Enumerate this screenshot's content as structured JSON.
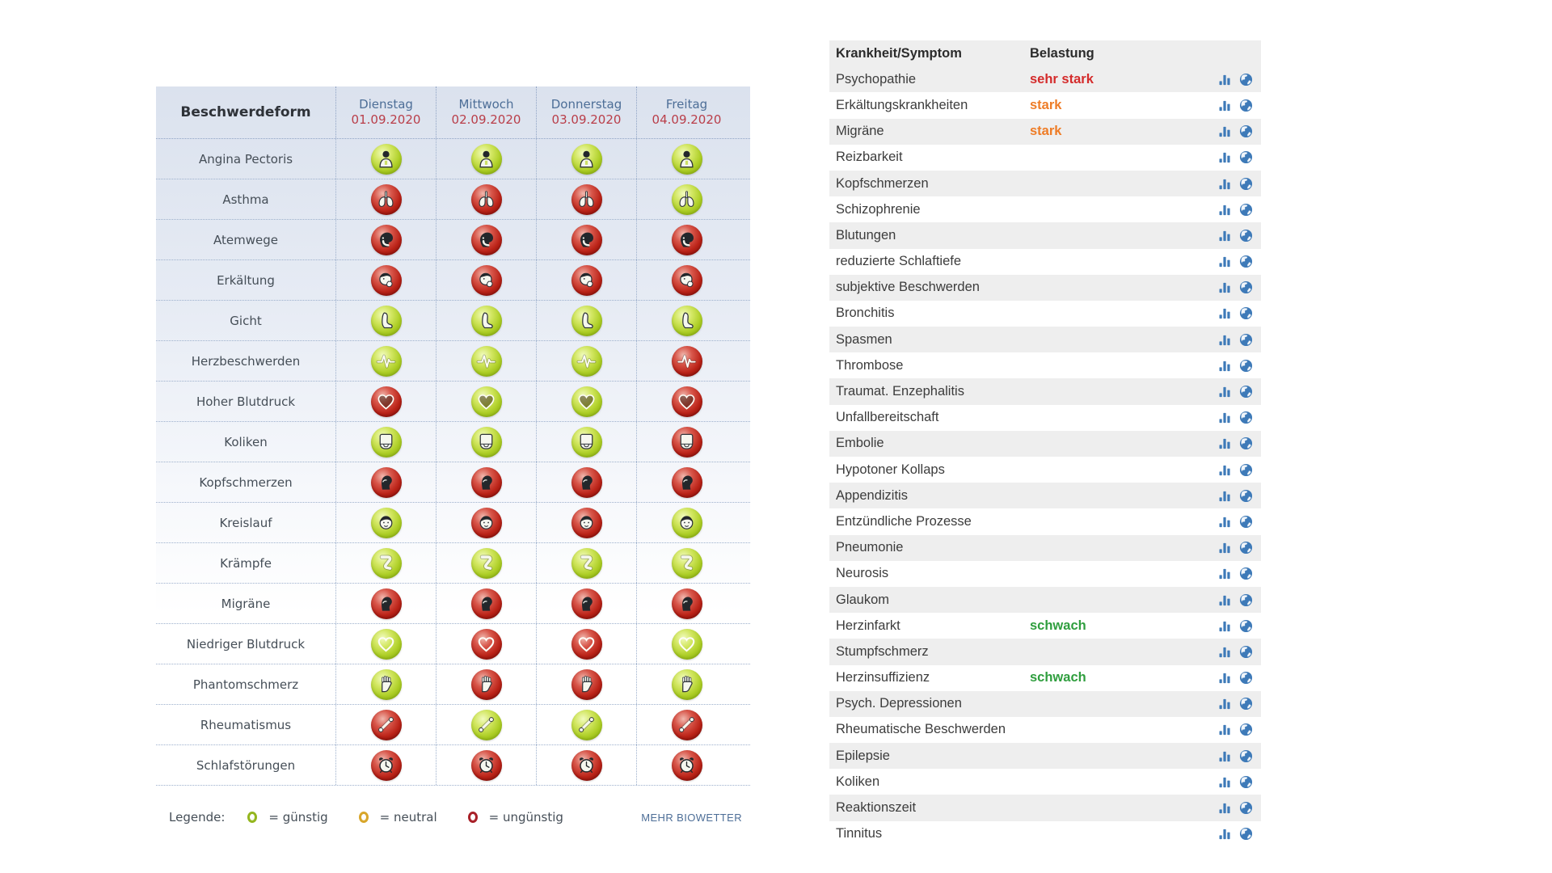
{
  "forecast_table": {
    "header_col": "Beschwerdeform",
    "days": [
      {
        "name": "Dienstag",
        "date": "01.09.2020"
      },
      {
        "name": "Mittwoch",
        "date": "02.09.2020"
      },
      {
        "name": "Donnerstag",
        "date": "03.09.2020"
      },
      {
        "name": "Freitag",
        "date": "04.09.2020"
      }
    ],
    "states_legend": {
      "g": "günstig",
      "n": "neutral",
      "u": "ungünstig"
    },
    "rows": [
      {
        "label": "Angina Pectoris",
        "icon": "upper-body",
        "states": [
          "g",
          "g",
          "g",
          "g"
        ]
      },
      {
        "label": "Asthma",
        "icon": "lungs",
        "states": [
          "u",
          "u",
          "u",
          "g"
        ]
      },
      {
        "label": "Atemwege",
        "icon": "airways",
        "states": [
          "u",
          "u",
          "u",
          "u"
        ]
      },
      {
        "label": "Erkältung",
        "icon": "sneezing-face",
        "states": [
          "u",
          "u",
          "u",
          "u"
        ]
      },
      {
        "label": "Gicht",
        "icon": "foot",
        "states": [
          "g",
          "g",
          "g",
          "g"
        ]
      },
      {
        "label": "Herzbeschwerden",
        "icon": "heartbeat",
        "states": [
          "g",
          "g",
          "g",
          "u"
        ]
      },
      {
        "label": "Hoher Blutdruck",
        "icon": "heart",
        "states": [
          "u",
          "g",
          "g",
          "u"
        ]
      },
      {
        "label": "Koliken",
        "icon": "abdomen",
        "states": [
          "g",
          "g",
          "g",
          "u"
        ]
      },
      {
        "label": "Kopfschmerzen",
        "icon": "head-profile",
        "states": [
          "u",
          "u",
          "u",
          "u"
        ]
      },
      {
        "label": "Kreislauf",
        "icon": "face",
        "states": [
          "g",
          "u",
          "u",
          "g"
        ]
      },
      {
        "label": "Krämpfe",
        "icon": "limb",
        "states": [
          "g",
          "g",
          "g",
          "g"
        ]
      },
      {
        "label": "Migräne",
        "icon": "head-profile",
        "states": [
          "u",
          "u",
          "u",
          "u"
        ]
      },
      {
        "label": "Niedriger Blutdruck",
        "icon": "heart-outline",
        "states": [
          "g",
          "u",
          "u",
          "g"
        ]
      },
      {
        "label": "Phantomschmerz",
        "icon": "hand",
        "states": [
          "g",
          "u",
          "u",
          "g"
        ]
      },
      {
        "label": "Rheumatismus",
        "icon": "joint",
        "states": [
          "u",
          "g",
          "g",
          "u"
        ]
      },
      {
        "label": "Schlafstörungen",
        "icon": "alarm-clock",
        "states": [
          "u",
          "u",
          "u",
          "u"
        ]
      }
    ],
    "legend": {
      "title": "Legende:",
      "items": [
        {
          "state": "g",
          "label": "= günstig"
        },
        {
          "state": "n",
          "label": "= neutral"
        },
        {
          "state": "u",
          "label": "= ungünstig"
        }
      ],
      "more_link": "MEHR BIOWETTER"
    },
    "colors": {
      "day_name": "#4d6e97",
      "date": "#b93e49",
      "green": "#9cc41c",
      "yellow": "#d8a62a",
      "red": "#b01f24"
    }
  },
  "symptom_table": {
    "columns": [
      "Krankheit/Symptom",
      "Belastung"
    ],
    "level_colors": {
      "sehr stark": "#d42b2b",
      "stark": "#ee7c26",
      "schwach": "#2f9e3e"
    },
    "row_icons": [
      "bar-chart-icon",
      "globe-icon"
    ],
    "rows": [
      {
        "name": "Psychopathie",
        "level": "sehr stark"
      },
      {
        "name": "Erkältungskrankheiten",
        "level": "stark"
      },
      {
        "name": "Migräne",
        "level": "stark"
      },
      {
        "name": "Reizbarkeit",
        "level": ""
      },
      {
        "name": "Kopfschmerzen",
        "level": ""
      },
      {
        "name": "Schizophrenie",
        "level": ""
      },
      {
        "name": "Blutungen",
        "level": ""
      },
      {
        "name": "reduzierte Schlaftiefe",
        "level": ""
      },
      {
        "name": "subjektive Beschwerden",
        "level": ""
      },
      {
        "name": "Bronchitis",
        "level": ""
      },
      {
        "name": "Spasmen",
        "level": ""
      },
      {
        "name": "Thrombose",
        "level": ""
      },
      {
        "name": "Traumat. Enzephalitis",
        "level": ""
      },
      {
        "name": "Unfallbereitschaft",
        "level": ""
      },
      {
        "name": "Embolie",
        "level": ""
      },
      {
        "name": "Hypotoner Kollaps",
        "level": ""
      },
      {
        "name": "Appendizitis",
        "level": ""
      },
      {
        "name": "Entzündliche Prozesse",
        "level": ""
      },
      {
        "name": "Pneumonie",
        "level": ""
      },
      {
        "name": "Neurosis",
        "level": ""
      },
      {
        "name": "Glaukom",
        "level": ""
      },
      {
        "name": "Herzinfarkt",
        "level": "schwach"
      },
      {
        "name": "Stumpfschmerz",
        "level": ""
      },
      {
        "name": "Herzinsuffizienz",
        "level": "schwach"
      },
      {
        "name": "Psych. Depressionen",
        "level": ""
      },
      {
        "name": "Rheumatische Beschwerden",
        "level": ""
      },
      {
        "name": "Epilepsie",
        "level": ""
      },
      {
        "name": "Koliken",
        "level": ""
      },
      {
        "name": "Reaktionszeit",
        "level": ""
      },
      {
        "name": "Tinnitus",
        "level": ""
      }
    ]
  }
}
